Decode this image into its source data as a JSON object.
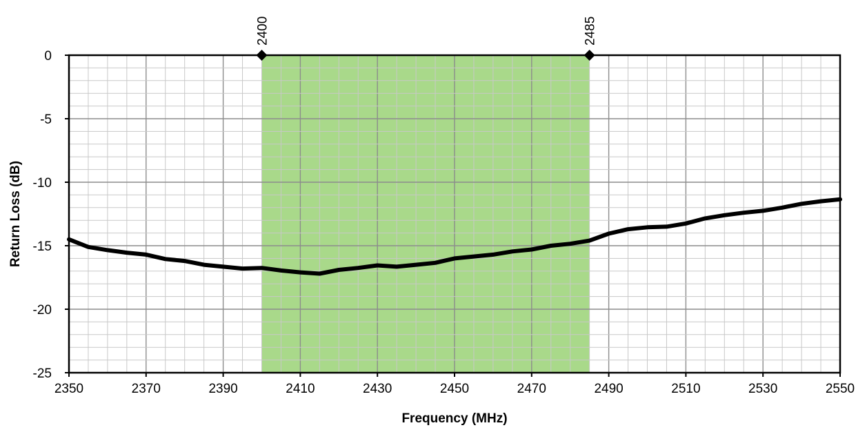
{
  "chart_data": {
    "type": "line",
    "title": "",
    "xlabel": "Frequency (MHz)",
    "ylabel": "Return Loss (dB)",
    "xlim": [
      2350,
      2550
    ],
    "ylim": [
      -25,
      0
    ],
    "x_ticks": [
      2350,
      2370,
      2390,
      2410,
      2430,
      2450,
      2470,
      2490,
      2510,
      2530,
      2550
    ],
    "y_ticks": [
      0,
      -5,
      -10,
      -15,
      -20,
      -25
    ],
    "x_tick_labels": [
      "2350",
      "2370",
      "2390",
      "2410",
      "2430",
      "2450",
      "2470",
      "2490",
      "2510",
      "2530",
      "2550"
    ],
    "y_tick_labels": [
      "0",
      "-5",
      "-10",
      "-15",
      "-20",
      "-25"
    ],
    "grid": true,
    "band": {
      "from": 2400,
      "to": 2485,
      "color": "#a9d98a"
    },
    "markers": [
      {
        "x": 2400,
        "y": 0,
        "label": "2400"
      },
      {
        "x": 2485,
        "y": 0,
        "label": "2485"
      }
    ],
    "series": [
      {
        "color": "#000000",
        "x": [
          2350,
          2355,
          2360,
          2365,
          2370,
          2375,
          2380,
          2385,
          2390,
          2395,
          2400,
          2405,
          2410,
          2415,
          2420,
          2425,
          2430,
          2435,
          2440,
          2445,
          2450,
          2455,
          2460,
          2465,
          2470,
          2475,
          2480,
          2485,
          2490,
          2495,
          2500,
          2505,
          2510,
          2515,
          2520,
          2525,
          2530,
          2535,
          2540,
          2545,
          2550
        ],
        "y": [
          -14.5,
          -15.1,
          -15.35,
          -15.55,
          -15.7,
          -16.05,
          -16.2,
          -16.5,
          -16.65,
          -16.8,
          -16.75,
          -16.95,
          -17.1,
          -17.2,
          -16.9,
          -16.75,
          -16.55,
          -16.65,
          -16.5,
          -16.35,
          -16.0,
          -15.85,
          -15.7,
          -15.45,
          -15.3,
          -15.0,
          -14.85,
          -14.6,
          -14.05,
          -13.7,
          -13.55,
          -13.5,
          -13.25,
          -12.85,
          -12.6,
          -12.4,
          -12.25,
          -12.0,
          -11.7,
          -11.5,
          -11.35
        ]
      }
    ]
  }
}
